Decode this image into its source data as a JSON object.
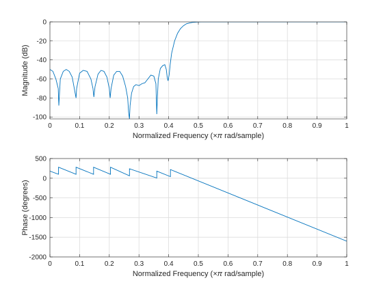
{
  "figure": {
    "background": "#ffffff",
    "line_color": "#0072bd",
    "grid_color": "#dcdcdc",
    "axis_color": "#262626"
  },
  "chart_data": [
    {
      "type": "line",
      "ylabel": "Magnitude (dB)",
      "xlabel_prefix": "Normalized Frequency  (",
      "xlabel_symbol": "×π",
      "xlabel_suffix": " rad/sample)",
      "xlim": [
        0,
        1
      ],
      "ylim": [
        -102,
        0
      ],
      "grid": true,
      "xticks": [
        0,
        0.1,
        0.2,
        0.3,
        0.4,
        0.5,
        0.6,
        0.7,
        0.8,
        0.9,
        1
      ],
      "xtick_labels": [
        "0",
        "0.1",
        "0.2",
        "0.3",
        "0.4",
        "0.5",
        "0.6",
        "0.7",
        "0.8",
        "0.9",
        "1"
      ],
      "yticks": [
        -100,
        -80,
        -60,
        -40,
        -20,
        0
      ],
      "ytick_labels": [
        "-100",
        "-80",
        "-60",
        "-40",
        "-20",
        "0"
      ],
      "series": [
        {
          "x": [
            0,
            0.01,
            0.02,
            0.028,
            0.03,
            0.035,
            0.045,
            0.055,
            0.065,
            0.075,
            0.085,
            0.088,
            0.09,
            0.1,
            0.112,
            0.125,
            0.138,
            0.145,
            0.148,
            0.152,
            0.162,
            0.172,
            0.182,
            0.192,
            0.2,
            0.203,
            0.206,
            0.215,
            0.225,
            0.235,
            0.245,
            0.255,
            0.262,
            0.265,
            0.268,
            0.27,
            0.275,
            0.282,
            0.29,
            0.3,
            0.31,
            0.32,
            0.33,
            0.34,
            0.35,
            0.357,
            0.36,
            0.362,
            0.365,
            0.372,
            0.38,
            0.387,
            0.392,
            0.395,
            0.398,
            0.402,
            0.405,
            0.41,
            0.42,
            0.43,
            0.44,
            0.45,
            0.46,
            0.47,
            0.48,
            0.49,
            0.5,
            0.51,
            0.52,
            0.53,
            0.55,
            0.6,
            0.7,
            0.8,
            0.9,
            1.0
          ],
          "y": [
            -50,
            -52,
            -60,
            -70,
            -88,
            -60,
            -52,
            -50,
            -52,
            -58,
            -75,
            -80,
            -70,
            -54,
            -51,
            -52,
            -60,
            -70,
            -79,
            -68,
            -55,
            -51,
            -52,
            -58,
            -70,
            -80,
            -70,
            -56,
            -52,
            -52,
            -57,
            -68,
            -80,
            -95,
            -102,
            -88,
            -75,
            -68,
            -66,
            -67,
            -65,
            -64,
            -60,
            -56,
            -57,
            -65,
            -97,
            -80,
            -60,
            -49,
            -46,
            -45,
            -50,
            -58,
            -62,
            -55,
            -45,
            -33,
            -20,
            -12,
            -7,
            -4,
            -2,
            -1.2,
            -0.6,
            -0.3,
            -0.1,
            -0.05,
            0,
            0,
            0,
            0,
            0,
            0,
            0,
            0
          ]
        }
      ]
    },
    {
      "type": "line",
      "ylabel": "Phase (degrees)",
      "xlabel_prefix": "Normalized Frequency  (",
      "xlabel_symbol": "×π",
      "xlabel_suffix": " rad/sample)",
      "xlim": [
        0,
        1
      ],
      "ylim": [
        -2000,
        500
      ],
      "grid": true,
      "xticks": [
        0,
        0.1,
        0.2,
        0.3,
        0.4,
        0.5,
        0.6,
        0.7,
        0.8,
        0.9,
        1
      ],
      "xtick_labels": [
        "0",
        "0.1",
        "0.2",
        "0.3",
        "0.4",
        "0.5",
        "0.6",
        "0.7",
        "0.8",
        "0.9",
        "1"
      ],
      "yticks": [
        -2000,
        -1500,
        -1000,
        -500,
        0,
        500
      ],
      "ytick_labels": [
        "-2000",
        "-1500",
        "-1000",
        "-500",
        "0",
        "500"
      ],
      "series": [
        {
          "x": [
            0,
            0.029,
            0.029,
            0.088,
            0.088,
            0.147,
            0.147,
            0.204,
            0.204,
            0.268,
            0.268,
            0.36,
            0.36,
            0.406,
            0.406,
            1.0
          ],
          "y": [
            180,
            100,
            280,
            100,
            280,
            100,
            280,
            100,
            280,
            60,
            240,
            5,
            180,
            40,
            220,
            -1600
          ]
        }
      ]
    }
  ]
}
